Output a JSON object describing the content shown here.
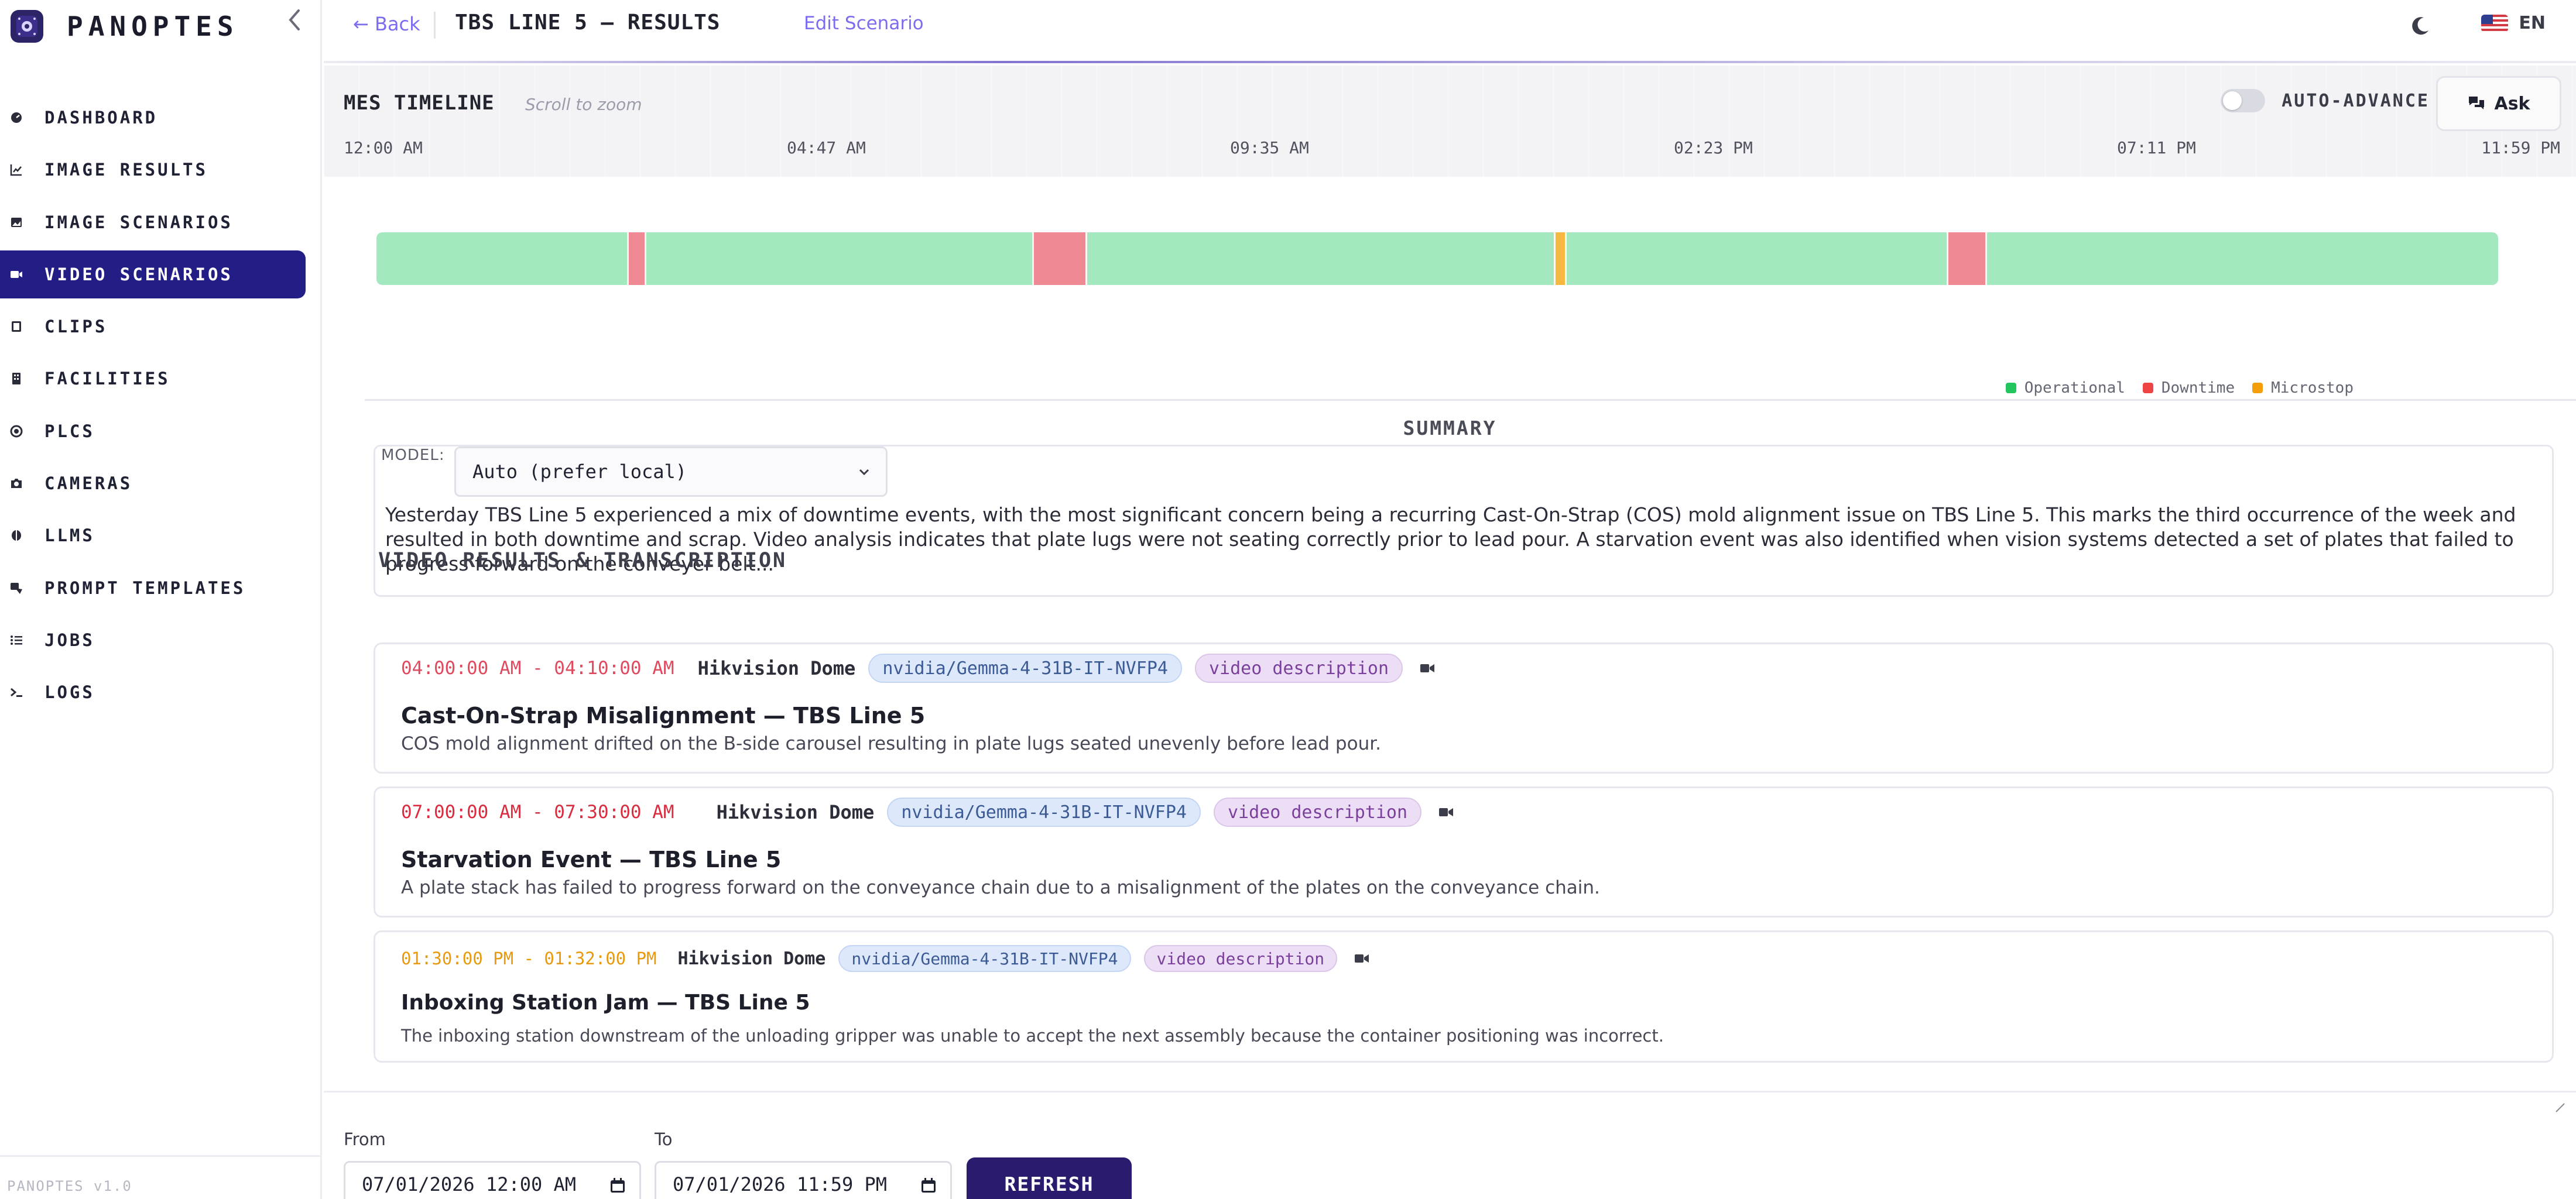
{
  "app": {
    "name": "PANOPTES",
    "version": "PANOPTES v1.0"
  },
  "sidebar": {
    "items": [
      {
        "label": "DASHBOARD",
        "icon": "gauge-icon",
        "active": false
      },
      {
        "label": "IMAGE RESULTS",
        "icon": "line-chart-icon",
        "active": false
      },
      {
        "label": "IMAGE SCENARIOS",
        "icon": "image-icon",
        "active": false
      },
      {
        "label": "VIDEO SCENARIOS",
        "icon": "video-icon",
        "active": true
      },
      {
        "label": "CLIPS",
        "icon": "film-icon",
        "active": false
      },
      {
        "label": "FACILITIES",
        "icon": "building-icon",
        "active": false
      },
      {
        "label": "PLCS",
        "icon": "cpu-icon",
        "active": false
      },
      {
        "label": "CAMERAS",
        "icon": "camera-icon",
        "active": false
      },
      {
        "label": "LLMS",
        "icon": "brain-icon",
        "active": false
      },
      {
        "label": "PROMPT TEMPLATES",
        "icon": "template-icon",
        "active": false
      },
      {
        "label": "JOBS",
        "icon": "list-icon",
        "active": false
      },
      {
        "label": "LOGS",
        "icon": "terminal-icon",
        "active": false
      }
    ]
  },
  "header": {
    "back_label": "← Back",
    "title": "TBS LINE 5 — RESULTS",
    "edit_label": "Edit Scenario",
    "language": "EN",
    "theme_icon": "moon-icon"
  },
  "timeline": {
    "title": "MES TIMELINE",
    "hint": "Scroll to zoom",
    "auto_advance_label": "AUTO-ADVANCE",
    "auto_advance_on": false,
    "ask_label": "Ask",
    "ticks": [
      "12:00 AM",
      "04:47 AM",
      "09:35 AM",
      "02:23 PM",
      "07:11 PM",
      "11:59 PM"
    ],
    "segments": [
      {
        "state": "Downtime",
        "start": 0.118,
        "end": 0.127
      },
      {
        "state": "Downtime",
        "start": 0.309,
        "end": 0.335
      },
      {
        "state": "Microstop",
        "start": 0.555,
        "end": 0.561
      },
      {
        "state": "Downtime",
        "start": 0.74,
        "end": 0.759
      }
    ],
    "legend": [
      {
        "label": "Operational",
        "color": "#22c55e"
      },
      {
        "label": "Downtime",
        "color": "#ef4444"
      },
      {
        "label": "Microstop",
        "color": "#f59e0b"
      }
    ],
    "colors": {
      "operational": "#a4e8bf",
      "downtime": "#ef8a94",
      "microstop": "#f5b942"
    }
  },
  "summary": {
    "title": "SUMMARY",
    "model_label": "MODEL:",
    "model_value": "Auto (prefer local)",
    "text": "Yesterday TBS Line 5 experienced a mix of downtime events, with the most significant concern being a recurring Cast-On-Strap (COS) mold alignment issue on TBS Line 5. This marks the third occurrence of the week and resulted in both downtime and scrap. Video analysis indicates that plate lugs were not seating correctly prior to lead pour. A starvation event was also identified when vision systems detected a set of plates that failed to progress forward on the conveyer belt..."
  },
  "video_results": {
    "title": "VIDEO RESULTS & TRANSCRIPTION",
    "items": [
      {
        "time": "04:00:00 AM - 04:10:00 AM",
        "time_color": "#e04a5f",
        "camera": "Hikvision Dome",
        "model": "nvidia/Gemma-4-31B-IT-NVFP4",
        "kind": "video description",
        "title": "Cast-On-Strap Misalignment — TBS Line 5",
        "description": "COS mold alignment drifted on the B-side carousel resulting in plate lugs seated unevenly before lead pour."
      },
      {
        "time": "07:00:00 AM - 07:30:00 AM",
        "time_color": "#d92d3f",
        "camera": "Hikvision Dome",
        "model": "nvidia/Gemma-4-31B-IT-NVFP4",
        "kind": "video description",
        "title": "Starvation Event — TBS Line 5",
        "description": "A plate stack has failed to progress forward on the conveyance chain due to a misalignment of the plates on the conveyance chain."
      },
      {
        "time": "01:30:00 PM - 01:32:00 PM",
        "time_color": "#e89a0c",
        "camera": "Hikvision Dome",
        "model": "nvidia/Gemma-4-31B-IT-NVFP4",
        "kind": "video description",
        "title": "Inboxing Station Jam — TBS Line 5",
        "description": "The inboxing station downstream of the unloading gripper was unable to accept the next assembly because the container positioning was incorrect."
      }
    ]
  },
  "filters": {
    "from_label": "From",
    "from_value": "07/01/2026 12:00 AM",
    "to_label": "To",
    "to_value": "07/01/2026 11:59 PM",
    "refresh_label": "REFRESH"
  }
}
